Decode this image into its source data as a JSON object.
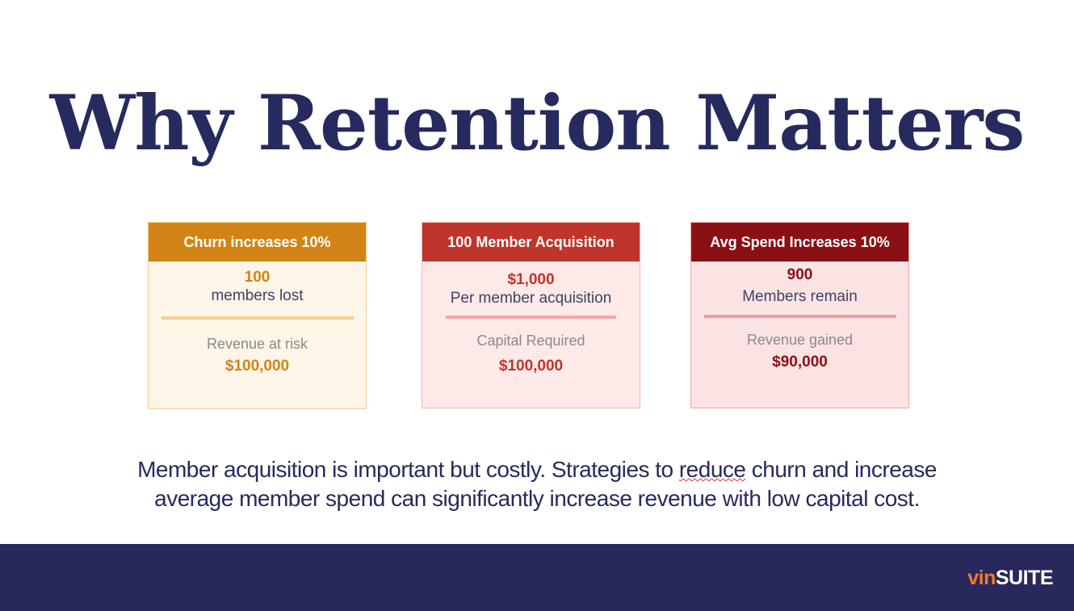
{
  "title": "Why Retention Matters",
  "cards": [
    {
      "header": "Churn increases 10%",
      "value": "100",
      "value_label": "members lost",
      "metric_label": "Revenue at risk",
      "metric_value": "$100,000"
    },
    {
      "header": "100 Member Acquisition",
      "value": "$1,000",
      "value_label": "Per member acquisition",
      "metric_label": "Capital Required",
      "metric_value": "$100,000"
    },
    {
      "header": "Avg Spend Increases 10%",
      "value": "900",
      "value_label": "Members remain",
      "metric_label": "Revenue gained",
      "metric_value": "$90,000"
    }
  ],
  "body": {
    "line1_pre": "Member acquisition is important but costly. Strategies to ",
    "line1_mark": "reduce",
    "line1_post": " churn and increase",
    "line2": "average member spend can significantly increase revenue with low capital cost."
  },
  "logo": {
    "vin": "vin",
    "suite": "SUITE"
  },
  "colors": {
    "title": "#262a5e",
    "card1_accent": "#d18415",
    "card2_accent": "#c0352b",
    "card3_accent": "#8b1015",
    "footer": "#28285c",
    "logo_vin": "#ef7a2c"
  }
}
